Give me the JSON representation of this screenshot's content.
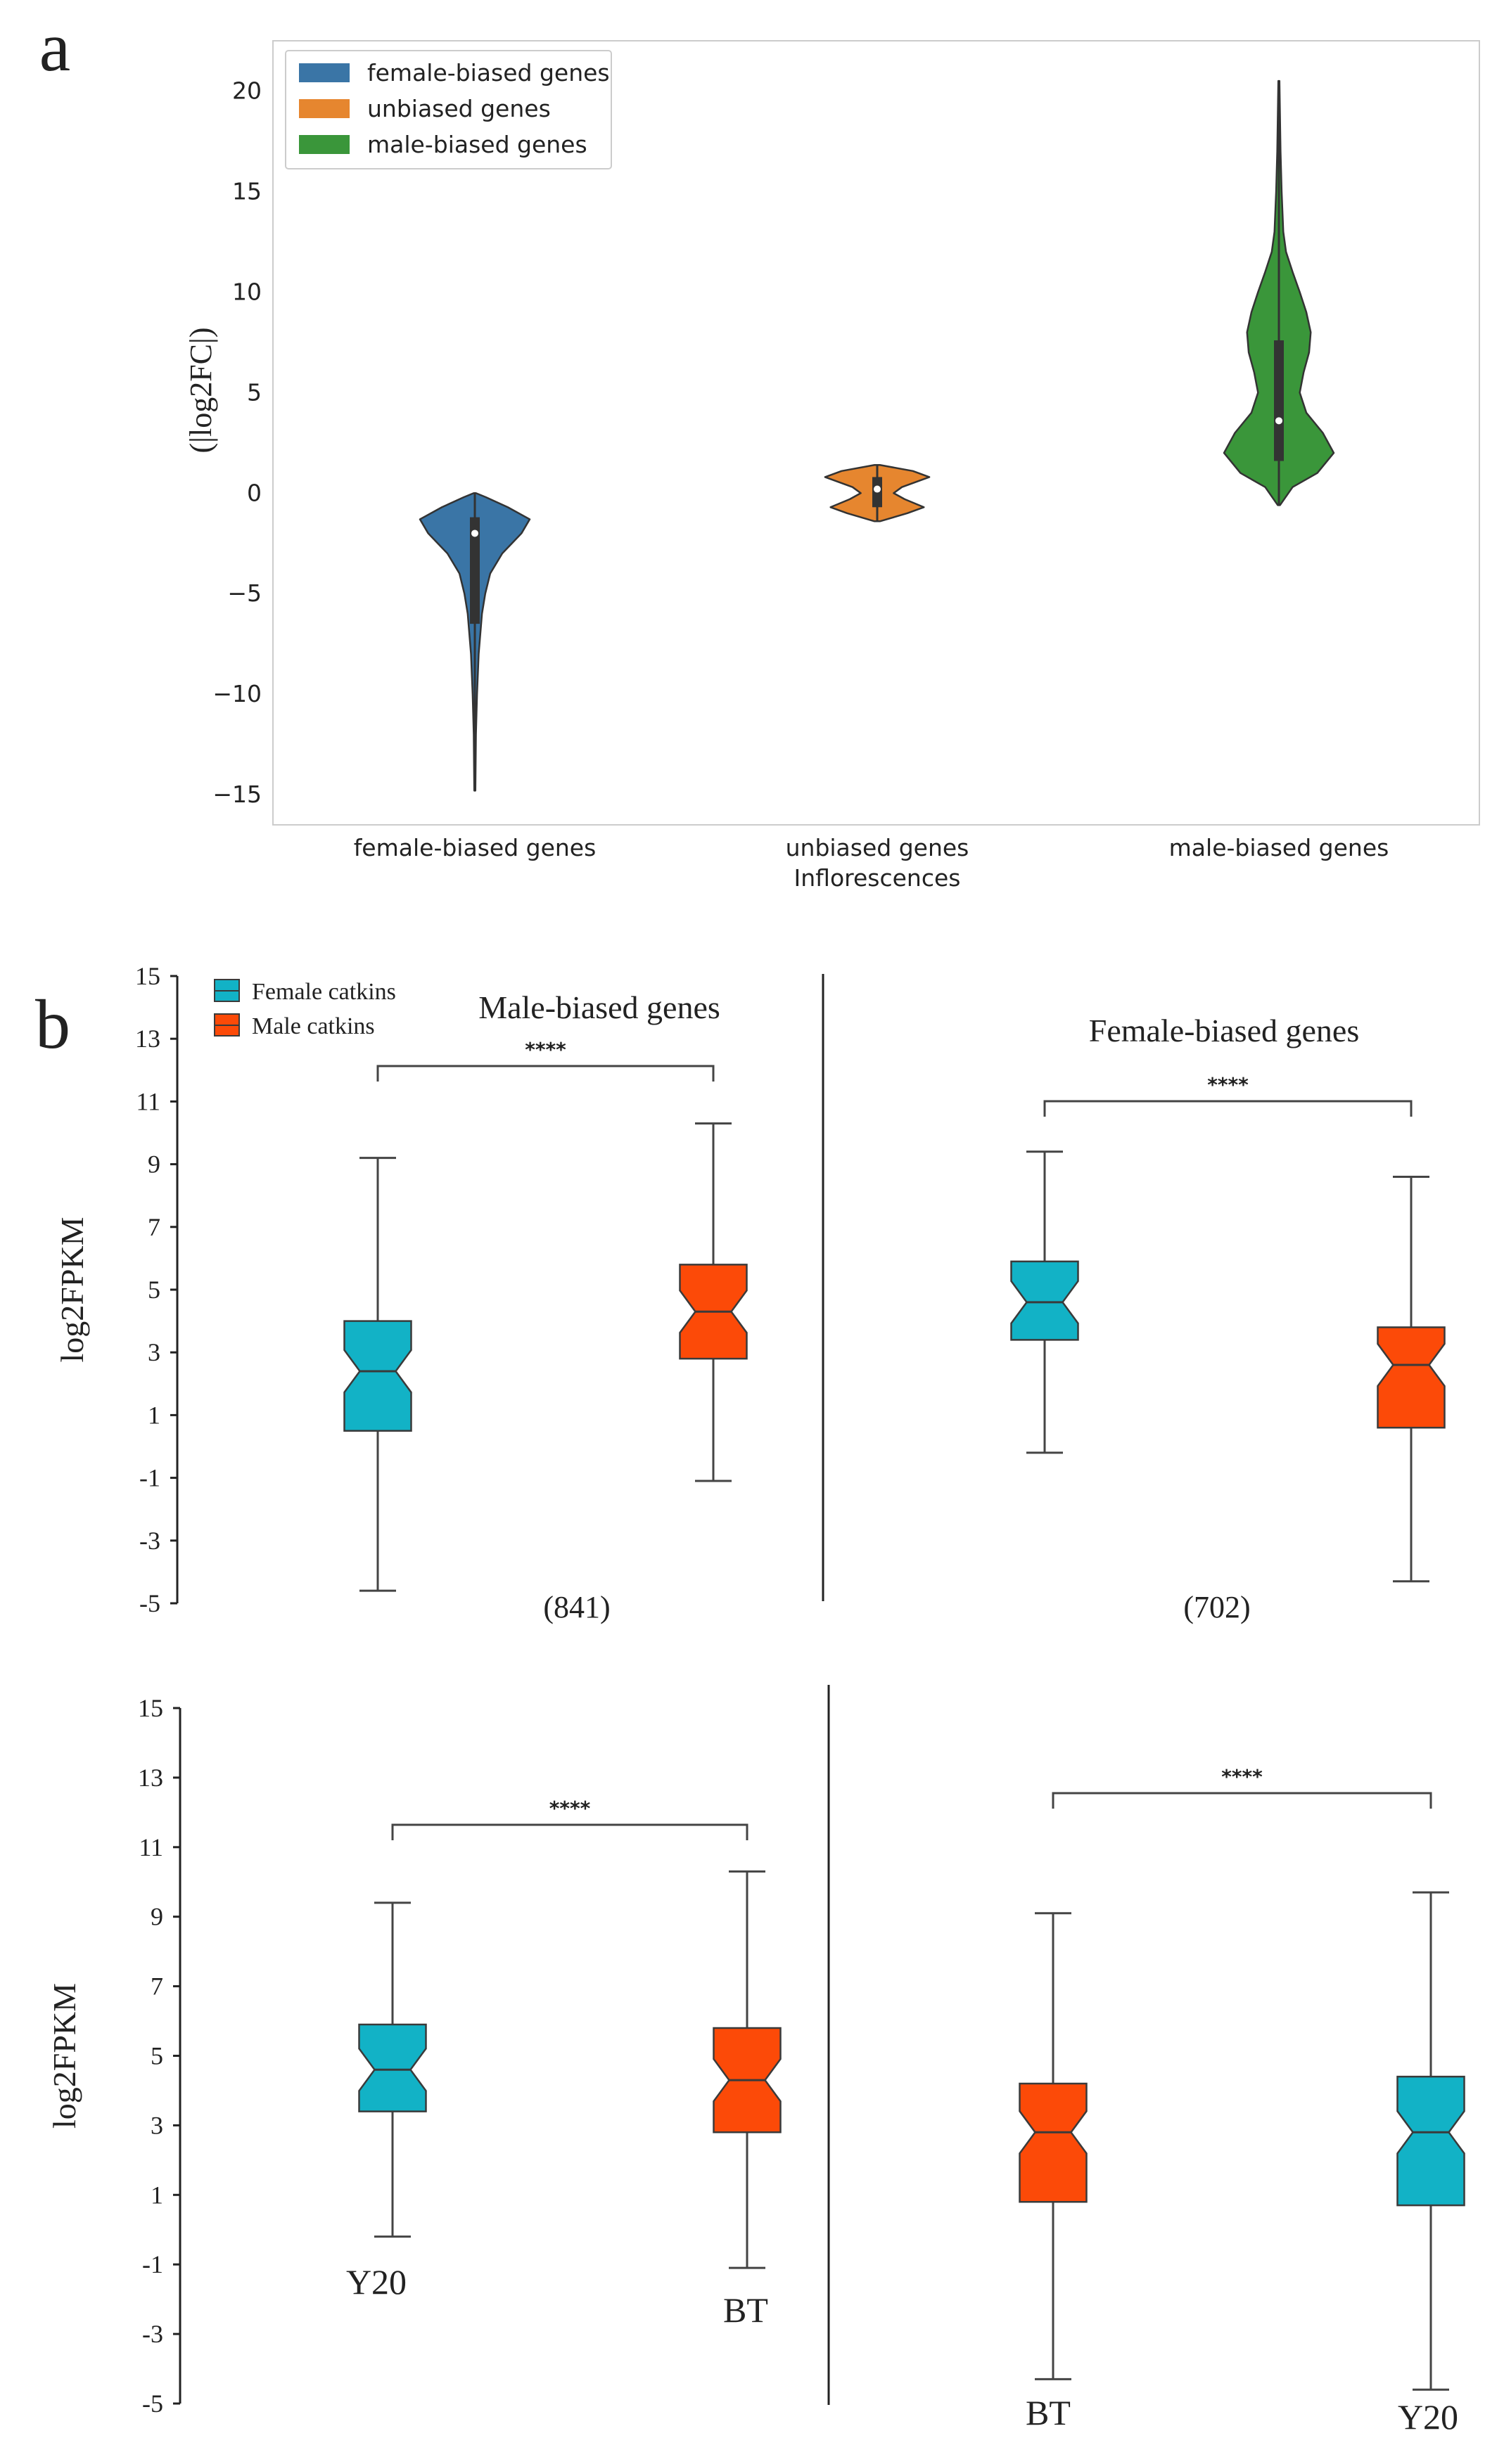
{
  "panel_labels": {
    "a": "a",
    "b": "b"
  },
  "colors": {
    "female_violin": "#3a75a6",
    "unbiased_violin": "#e6862f",
    "male_violin": "#3a963a",
    "female_box": "#12b2c6",
    "male_box": "#fc4a08",
    "whisker": "#444444",
    "frame": "#cccccc"
  },
  "chart_data": [
    {
      "id": "a",
      "type": "violin",
      "title": "",
      "ylabel": "(|log2FC|)",
      "xlabel": "Inflorescences",
      "ylim": [
        -16.5,
        22.5
      ],
      "yticks": [
        -15,
        -10,
        -5,
        0,
        5,
        10,
        15,
        20
      ],
      "ytick_labels": [
        "−15",
        "−10",
        "−5",
        "0",
        "5",
        "10",
        "15",
        "20"
      ],
      "categories": [
        "female-biased genes",
        "unbiased genes",
        "male-biased genes"
      ],
      "legend": {
        "position": "top-left",
        "entries": [
          "female-biased genes",
          "unbiased genes",
          "male-biased genes"
        ]
      },
      "series": [
        {
          "name": "female-biased genes",
          "min": -14.8,
          "max": 0.0,
          "q1": -6.5,
          "median": -2.0,
          "q3": -1.2,
          "profile": [
            [
              -14.8,
              0.01
            ],
            [
              -12,
              0.02
            ],
            [
              -10,
              0.04
            ],
            [
              -8,
              0.07
            ],
            [
              -6,
              0.13
            ],
            [
              -5,
              0.19
            ],
            [
              -4,
              0.28
            ],
            [
              -3,
              0.5
            ],
            [
              -2,
              0.85
            ],
            [
              -1.3,
              1.0
            ],
            [
              -0.7,
              0.6
            ],
            [
              -0.2,
              0.2
            ],
            [
              0,
              0.02
            ]
          ]
        },
        {
          "name": "unbiased genes",
          "min": -1.4,
          "max": 1.4,
          "q1": -0.7,
          "median": 0.2,
          "q3": 0.8,
          "profile": [
            [
              -1.4,
              0.05
            ],
            [
              -1.0,
              0.55
            ],
            [
              -0.7,
              0.85
            ],
            [
              -0.3,
              0.5
            ],
            [
              0.0,
              0.3
            ],
            [
              0.3,
              0.45
            ],
            [
              0.8,
              0.95
            ],
            [
              1.1,
              0.65
            ],
            [
              1.4,
              0.05
            ]
          ]
        },
        {
          "name": "male-biased genes",
          "min": -0.6,
          "max": 20.5,
          "q1": 1.6,
          "median": 3.6,
          "q3": 7.6,
          "profile": [
            [
              -0.6,
              0.02
            ],
            [
              0.3,
              0.25
            ],
            [
              1.0,
              0.7
            ],
            [
              2.0,
              1.0
            ],
            [
              3.0,
              0.8
            ],
            [
              4.0,
              0.5
            ],
            [
              5.0,
              0.38
            ],
            [
              6.0,
              0.45
            ],
            [
              7.0,
              0.55
            ],
            [
              8.0,
              0.58
            ],
            [
              9.0,
              0.5
            ],
            [
              10.0,
              0.38
            ],
            [
              11.0,
              0.25
            ],
            [
              12.0,
              0.13
            ],
            [
              13.0,
              0.08
            ],
            [
              15.0,
              0.05
            ],
            [
              17.0,
              0.03
            ],
            [
              20.5,
              0.01
            ]
          ]
        }
      ]
    },
    {
      "id": "b-top-left",
      "type": "box",
      "title": "Male-biased genes",
      "ylabel": "log2FPKM",
      "ylim": [
        -5,
        15
      ],
      "yticks": [
        -5,
        -3,
        -1,
        1,
        3,
        5,
        7,
        9,
        11,
        13,
        15
      ],
      "legend": {
        "position": "top-left",
        "entries": [
          "Female catkins",
          "Male catkins"
        ]
      },
      "significance": "****",
      "count_label": "(841)",
      "series": [
        {
          "name": "Female catkins",
          "whisker_low": -4.6,
          "q1": 0.5,
          "median": 2.4,
          "q3": 4.0,
          "whisker_high": 9.2
        },
        {
          "name": "Male catkins",
          "whisker_low": -1.1,
          "q1": 2.8,
          "median": 4.3,
          "q3": 5.8,
          "whisker_high": 10.3
        }
      ]
    },
    {
      "id": "b-top-right",
      "type": "box",
      "title": "Female-biased genes",
      "ylim": [
        -5,
        15
      ],
      "significance": "****",
      "count_label": "(702)",
      "series": [
        {
          "name": "Female catkins",
          "whisker_low": -0.2,
          "q1": 3.4,
          "median": 4.6,
          "q3": 5.9,
          "whisker_high": 9.4
        },
        {
          "name": "Male catkins",
          "whisker_low": -4.3,
          "q1": 0.6,
          "median": 2.6,
          "q3": 3.8,
          "whisker_high": 8.6
        }
      ]
    },
    {
      "id": "b-bottom-left",
      "type": "box",
      "ylabel": "log2FPKM",
      "ylim": [
        -5,
        15
      ],
      "yticks": [
        -5,
        -3,
        -1,
        1,
        3,
        5,
        7,
        9,
        11,
        13,
        15
      ],
      "significance": "****",
      "series": [
        {
          "name": "Y20",
          "color": "female",
          "whisker_low": -0.2,
          "q1": 3.4,
          "median": 4.6,
          "q3": 5.9,
          "whisker_high": 9.4
        },
        {
          "name": "BT",
          "color": "male",
          "whisker_low": -1.1,
          "q1": 2.8,
          "median": 4.3,
          "q3": 5.8,
          "whisker_high": 10.3
        }
      ]
    },
    {
      "id": "b-bottom-right",
      "type": "box",
      "ylim": [
        -5,
        15
      ],
      "significance": "****",
      "series": [
        {
          "name": "BT",
          "color": "male",
          "whisker_low": -4.3,
          "q1": 0.8,
          "median": 2.8,
          "q3": 4.2,
          "whisker_high": 9.1
        },
        {
          "name": "Y20",
          "color": "female",
          "whisker_low": -4.6,
          "q1": 0.7,
          "median": 2.8,
          "q3": 4.4,
          "whisker_high": 9.7
        }
      ]
    }
  ]
}
